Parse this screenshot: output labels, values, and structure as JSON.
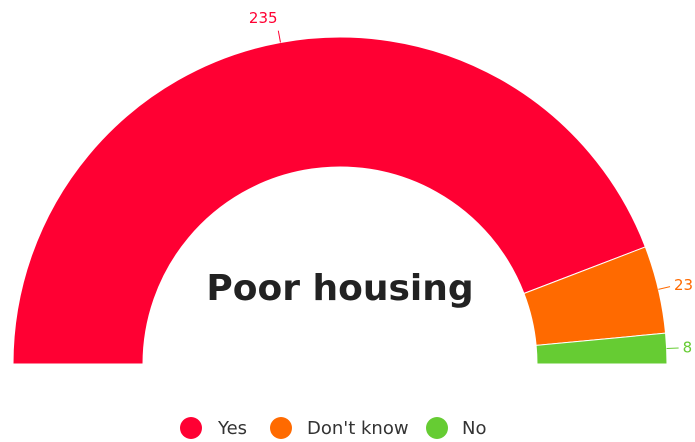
{
  "chart_data": {
    "type": "semi-donut",
    "title": "Poor housing",
    "categories": [
      "Yes",
      "Don't know",
      "No"
    ],
    "values": [
      235,
      23,
      8
    ],
    "colors": [
      "#ff0033",
      "#ff6a00",
      "#66cc33"
    ],
    "legend": "bottom"
  }
}
